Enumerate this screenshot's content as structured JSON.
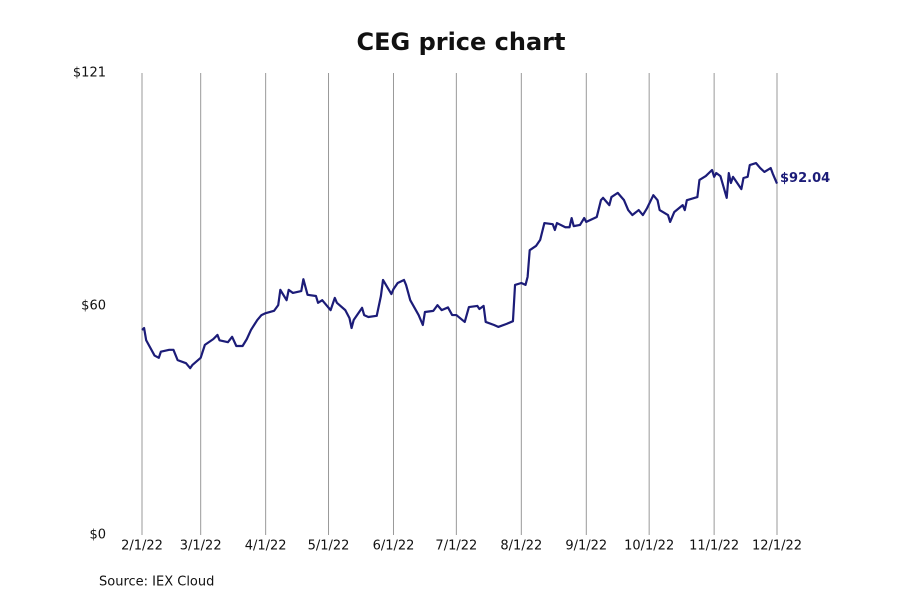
{
  "chart_data": {
    "type": "line",
    "title": "CEG price chart",
    "source": "Source: IEX Cloud",
    "color": "#1c1c78",
    "grid": true,
    "xlim": [
      "2022-02-01",
      "2022-12-01"
    ],
    "xticks": [
      {
        "value": "2022-02-01",
        "label": "2/1/22"
      },
      {
        "value": "2022-03-01",
        "label": "3/1/22"
      },
      {
        "value": "2022-04-01",
        "label": "4/1/22"
      },
      {
        "value": "2022-05-01",
        "label": "5/1/22"
      },
      {
        "value": "2022-06-01",
        "label": "6/1/22"
      },
      {
        "value": "2022-07-01",
        "label": "7/1/22"
      },
      {
        "value": "2022-08-01",
        "label": "8/1/22"
      },
      {
        "value": "2022-09-01",
        "label": "9/1/22"
      },
      {
        "value": "2022-10-01",
        "label": "10/1/22"
      },
      {
        "value": "2022-11-01",
        "label": "11/1/22"
      },
      {
        "value": "2022-12-01",
        "label": "12/1/22"
      }
    ],
    "ylim": [
      0,
      121
    ],
    "yticks": [
      {
        "value": 0,
        "label": "$0"
      },
      {
        "value": 60,
        "label": "$60"
      },
      {
        "value": 121,
        "label": "$121"
      }
    ],
    "x": [
      "2022-02-01",
      "2022-02-02",
      "2022-02-03",
      "2022-02-07",
      "2022-02-09",
      "2022-02-10",
      "2022-02-14",
      "2022-02-16",
      "2022-02-18",
      "2022-02-22",
      "2022-02-24",
      "2022-02-25",
      "2022-03-01",
      "2022-03-03",
      "2022-03-07",
      "2022-03-09",
      "2022-03-10",
      "2022-03-14",
      "2022-03-16",
      "2022-03-18",
      "2022-03-21",
      "2022-03-23",
      "2022-03-25",
      "2022-03-28",
      "2022-03-30",
      "2022-04-01",
      "2022-04-05",
      "2022-04-07",
      "2022-04-08",
      "2022-04-11",
      "2022-04-12",
      "2022-04-14",
      "2022-04-18",
      "2022-04-19",
      "2022-04-21",
      "2022-04-25",
      "2022-04-26",
      "2022-04-28",
      "2022-05-02",
      "2022-05-04",
      "2022-05-05",
      "2022-05-09",
      "2022-05-11",
      "2022-05-12",
      "2022-05-13",
      "2022-05-17",
      "2022-05-18",
      "2022-05-20",
      "2022-05-24",
      "2022-05-26",
      "2022-05-27",
      "2022-05-31",
      "2022-06-01",
      "2022-06-03",
      "2022-06-06",
      "2022-06-07",
      "2022-06-09",
      "2022-06-13",
      "2022-06-15",
      "2022-06-16",
      "2022-06-20",
      "2022-06-22",
      "2022-06-24",
      "2022-06-27",
      "2022-06-29",
      "2022-07-01",
      "2022-07-05",
      "2022-07-07",
      "2022-07-11",
      "2022-07-12",
      "2022-07-14",
      "2022-07-15",
      "2022-07-19",
      "2022-07-21",
      "2022-07-25",
      "2022-07-28",
      "2022-07-29",
      "2022-08-01",
      "2022-08-03",
      "2022-08-04",
      "2022-08-05",
      "2022-08-08",
      "2022-08-10",
      "2022-08-12",
      "2022-08-16",
      "2022-08-17",
      "2022-08-18",
      "2022-08-22",
      "2022-08-24",
      "2022-08-25",
      "2022-08-26",
      "2022-08-29",
      "2022-08-31",
      "2022-09-01",
      "2022-09-06",
      "2022-09-08",
      "2022-09-09",
      "2022-09-12",
      "2022-09-13",
      "2022-09-16",
      "2022-09-19",
      "2022-09-21",
      "2022-09-23",
      "2022-09-26",
      "2022-09-28",
      "2022-09-30",
      "2022-10-03",
      "2022-10-05",
      "2022-10-06",
      "2022-10-10",
      "2022-10-11",
      "2022-10-13",
      "2022-10-17",
      "2022-10-18",
      "2022-10-19",
      "2022-10-24",
      "2022-10-25",
      "2022-10-28",
      "2022-10-31",
      "2022-11-01",
      "2022-11-02",
      "2022-11-04",
      "2022-11-07",
      "2022-11-08",
      "2022-11-09",
      "2022-11-10",
      "2022-11-11",
      "2022-11-14",
      "2022-11-15",
      "2022-11-17",
      "2022-11-18",
      "2022-11-21",
      "2022-11-23",
      "2022-11-25",
      "2022-11-28",
      "2022-11-29",
      "2022-12-01"
    ],
    "values": [
      53.7,
      54.2,
      51,
      47,
      46.4,
      48,
      48.5,
      48.5,
      45.8,
      45,
      43.7,
      44.5,
      46.4,
      49.8,
      51.3,
      52.4,
      51,
      50.5,
      51.9,
      49.5,
      49.5,
      51.3,
      53.7,
      56.3,
      57.6,
      58.1,
      58.7,
      60.2,
      64.2,
      61.5,
      64.2,
      63.4,
      63.9,
      67,
      62.9,
      62.6,
      60.8,
      61.5,
      58.9,
      62.1,
      60.8,
      58.9,
      56.8,
      54.2,
      56.3,
      59.5,
      57.6,
      57.1,
      57.4,
      62.6,
      66.8,
      63.1,
      64.4,
      66,
      66.8,
      65.5,
      61.5,
      57.6,
      55,
      58.4,
      58.7,
      60.2,
      58.9,
      59.6,
      57.6,
      57.6,
      55.8,
      59.7,
      60,
      59.2,
      60,
      55.8,
      55,
      54.5,
      55.3,
      56,
      65.5,
      66,
      65.5,
      67.6,
      74.6,
      75.7,
      77.3,
      81.7,
      81.4,
      79.9,
      81.7,
      80.6,
      80.6,
      83,
      80.9,
      81.2,
      83,
      82,
      83.3,
      87.7,
      88.3,
      86.4,
      88.5,
      89.6,
      87.7,
      85.1,
      83.8,
      85.1,
      83.8,
      85.6,
      89,
      87.7,
      85.1,
      83.8,
      82,
      84.6,
      86.4,
      85.1,
      87.7,
      88.5,
      93,
      94,
      95.6,
      93.8,
      94.8,
      94,
      88.3,
      94.8,
      92.2,
      93.8,
      93,
      90.6,
      93.5,
      93.8,
      96.9,
      97.4,
      96.1,
      95.1,
      96.1,
      94.6,
      92.04
    ],
    "annotations": [
      {
        "text": "$92.04",
        "x": "2022-12-01",
        "y": 92.04
      }
    ]
  }
}
